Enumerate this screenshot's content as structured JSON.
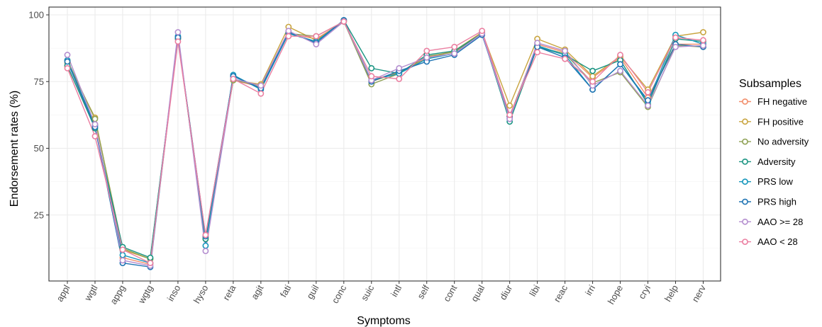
{
  "chart_data": {
    "type": "line",
    "title": "",
    "xlabel": "Symptoms",
    "ylabel": "Endorsement rates (%)",
    "ylim": [
      0,
      100
    ],
    "yticks": [
      25,
      50,
      75,
      100
    ],
    "grid": true,
    "legend_placement": "right",
    "legend_title": "Subsamples",
    "categories": [
      "appl",
      "wgtl",
      "appg",
      "wgtg",
      "inso",
      "hyso",
      "reta",
      "agit",
      "fati",
      "guil",
      "conc",
      "suic",
      "intl",
      "self",
      "cont",
      "qual",
      "diur",
      "libi",
      "reac",
      "irri",
      "hope",
      "cryi",
      "help",
      "nerv"
    ],
    "series": [
      {
        "name": "FH negative",
        "color": "#F28E6B",
        "values": [
          80.5,
          59,
          9,
          6.5,
          91.5,
          16.5,
          75.5,
          73,
          93,
          91,
          97.5,
          75.5,
          78.5,
          84,
          86.5,
          93,
          62,
          89,
          86,
          76.5,
          84,
          69,
          89,
          89
        ]
      },
      {
        "name": "FH positive",
        "color": "#C9A540",
        "values": [
          82,
          61.5,
          12,
          8.5,
          91.5,
          16,
          75.5,
          74,
          95.5,
          90.5,
          97.5,
          75,
          78.5,
          83.5,
          86.5,
          93.5,
          66,
          91,
          87,
          77,
          84.5,
          72,
          92,
          93.5
        ]
      },
      {
        "name": "No adversity",
        "color": "#8FA155",
        "values": [
          83,
          61,
          12.5,
          8.5,
          91,
          16.5,
          75.5,
          73.5,
          93,
          92,
          97.5,
          74,
          78,
          84.5,
          86,
          93,
          62,
          88,
          85.5,
          74.5,
          78.5,
          65.5,
          88.5,
          88
        ]
      },
      {
        "name": "Adversity",
        "color": "#1A9482",
        "values": [
          81,
          57.5,
          13,
          9,
          91,
          16,
          77,
          72.5,
          93,
          90,
          98,
          80,
          78,
          85,
          86.5,
          93,
          60,
          88,
          85,
          79,
          83,
          66.5,
          91,
          90
        ]
      },
      {
        "name": "PRS low",
        "color": "#1797BC",
        "values": [
          83,
          58.5,
          10,
          7,
          92,
          13.5,
          77.5,
          72,
          93,
          90,
          98,
          75.5,
          78,
          83.5,
          85.5,
          93,
          61,
          88.5,
          85,
          72,
          81.5,
          67.5,
          92.5,
          89
        ]
      },
      {
        "name": "PRS high",
        "color": "#2175B4",
        "values": [
          82.5,
          58,
          7,
          5.5,
          91.5,
          17,
          77,
          72.5,
          93.5,
          89.5,
          98,
          75,
          79,
          82.5,
          85,
          92.5,
          62,
          88,
          84,
          72,
          81.5,
          68,
          89,
          88
        ]
      },
      {
        "name": "AAO >= 28",
        "color": "#B48ECF",
        "values": [
          85,
          59,
          8,
          6,
          93.5,
          11.5,
          76,
          73.5,
          94,
          89,
          97.5,
          75.5,
          80,
          84,
          85.5,
          93,
          61,
          89.5,
          86.5,
          73.5,
          79,
          66,
          88,
          88.5
        ]
      },
      {
        "name": "AAO < 28",
        "color": "#EB7FA1",
        "values": [
          80,
          54.5,
          12,
          7,
          90,
          17.5,
          76,
          70.5,
          92,
          92,
          97.5,
          77,
          76,
          86.5,
          88,
          94,
          62.5,
          86,
          83.5,
          75,
          85,
          71,
          91.5,
          90.5
        ]
      }
    ]
  }
}
